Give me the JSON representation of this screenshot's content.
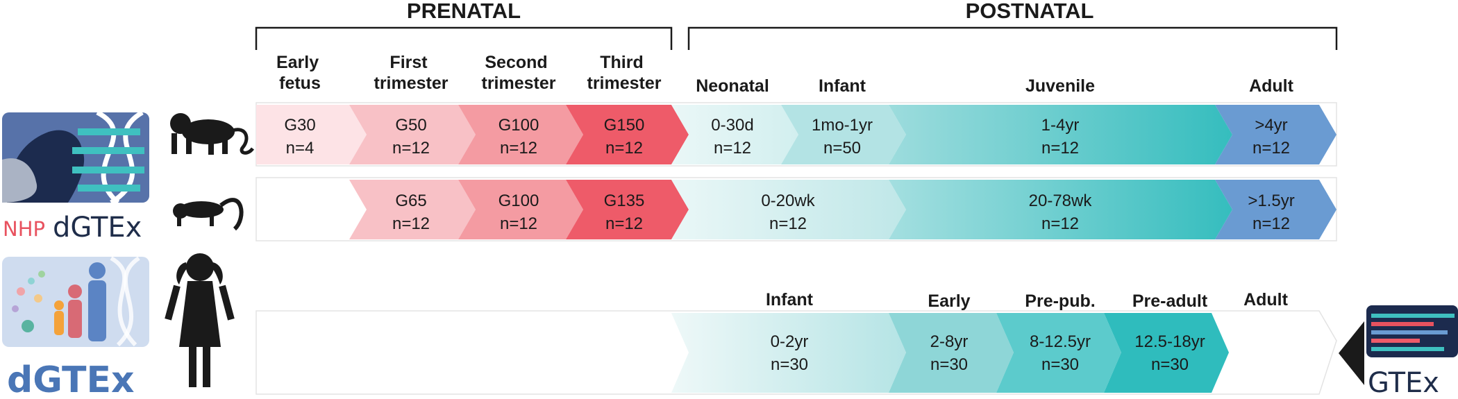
{
  "periods": {
    "prenatal": "PRENATAL",
    "postnatal": "POSTNATAL"
  },
  "stages": {
    "early_fetus": [
      "Early",
      "fetus"
    ],
    "first_trimester": [
      "First",
      "trimester"
    ],
    "second_trimester": [
      "Second",
      "trimester"
    ],
    "third_trimester": [
      "Third",
      "trimester"
    ],
    "neonatal": "Neonatal",
    "infant": "Infant",
    "juvenile": "Juvenile",
    "adult": "Adult"
  },
  "rows": {
    "macaque": [
      {
        "label": "G30",
        "n": "n=4",
        "color": "#fde3e6"
      },
      {
        "label": "G50",
        "n": "n=12",
        "color": "#f8c1c6"
      },
      {
        "label": "G100",
        "n": "n=12",
        "color": "#f49ba2"
      },
      {
        "label": "G150",
        "n": "n=12",
        "color": "#ee5b69"
      },
      {
        "label": "0-30d",
        "n": "n=12",
        "color": "#e0f4f4"
      },
      {
        "label": "1mo-1yr",
        "n": "n=50",
        "color": "#b3e3e4"
      },
      {
        "label": "1-4yr",
        "n": "n=12",
        "color": "#3fc0c0"
      },
      {
        "label": ">4yr",
        "n": "n=12",
        "color": "#6a9bd2"
      }
    ],
    "marmoset": [
      {
        "label": "G65",
        "n": "n=12",
        "color": "#f8c1c6"
      },
      {
        "label": "G100",
        "n": "n=12",
        "color": "#f49ba2"
      },
      {
        "label": "G135",
        "n": "n=12",
        "color": "#ee5b69"
      },
      {
        "label": "0-20wk",
        "n": "n=12",
        "color": "#a9dfe0"
      },
      {
        "label": "20-78wk",
        "n": "n=12",
        "color": "#3fc0c0"
      },
      {
        "label": ">1.5yr",
        "n": "n=12",
        "color": "#6a9bd2"
      }
    ],
    "human_headers": {
      "infant": "Infant",
      "early": "Early",
      "prepub": "Pre-pub.",
      "preadult": "Pre-adult",
      "adult": "Adult"
    },
    "human": [
      {
        "label": "0-2yr",
        "n": "n=30",
        "color": "#a9dfe0"
      },
      {
        "label": "2-8yr",
        "n": "n=30",
        "color": "#8ed6d7"
      },
      {
        "label": "8-12.5yr",
        "n": "n=30",
        "color": "#5ccbcc"
      },
      {
        "label": "12.5-18yr",
        "n": "n=30",
        "color": "#2fbcbd"
      }
    ]
  },
  "logos": {
    "nhp_prefix": "NHP",
    "nhp_name": "dGTEx",
    "human_name": "dGTEx",
    "gtex_name": "GTEx"
  },
  "icons": [
    "dna-icon",
    "monkey-icon",
    "marmoset-icon",
    "child-icon",
    "family-icon",
    "gtex-icon",
    "triangle-pointer-icon"
  ]
}
